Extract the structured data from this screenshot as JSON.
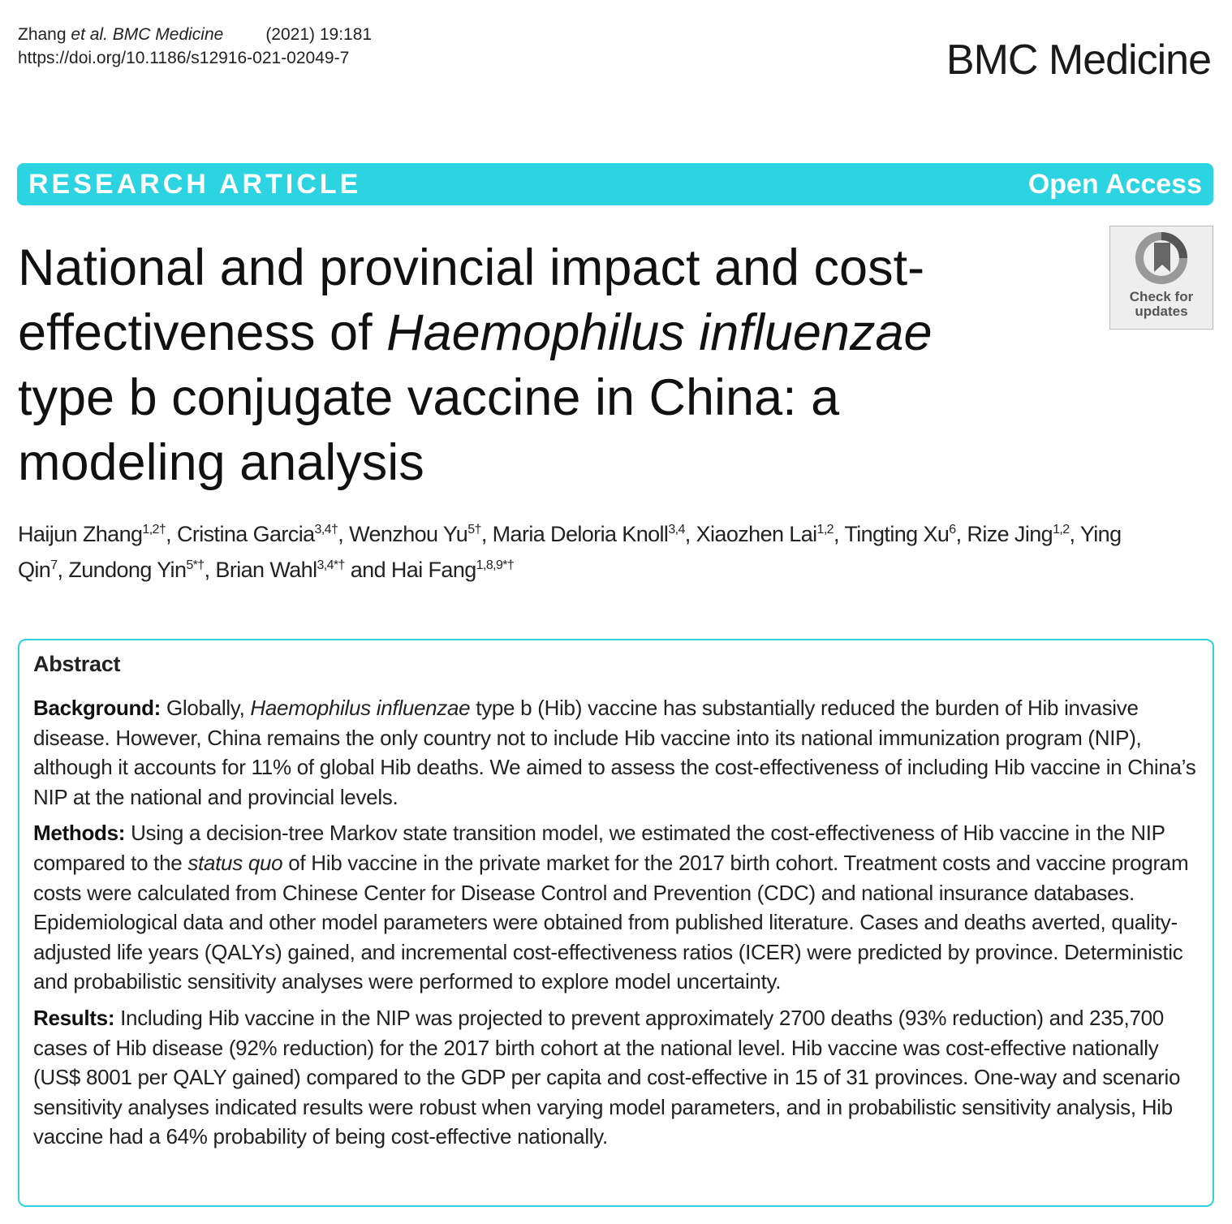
{
  "header": {
    "citation_author": "Zhang",
    "citation_etal": "et al.",
    "citation_journal": "BMC Medicine",
    "citation_year": "(2021) 19:181",
    "doi": "https://doi.org/10.1186/s12916-021-02049-7",
    "journal_name": "BMC Medicine"
  },
  "banner": {
    "type": "RESEARCH ARTICLE",
    "access": "Open Access",
    "color": "#2bd4e0"
  },
  "badge": {
    "line1": "Check for",
    "line2": "updates"
  },
  "title": {
    "part1": "National and provincial impact and cost-effectiveness of ",
    "italic": "Haemophilus influenzae",
    "part2": " type b conjugate vaccine in China: a modeling analysis"
  },
  "authors": [
    {
      "name": "Haijun Zhang",
      "affil": "1,2†",
      "sep": ", "
    },
    {
      "name": "Cristina Garcia",
      "affil": "3,4†",
      "sep": ", "
    },
    {
      "name": "Wenzhou Yu",
      "affil": "5†",
      "sep": ", "
    },
    {
      "name": "Maria Deloria Knoll",
      "affil": "3,4",
      "sep": ", "
    },
    {
      "name": "Xiaozhen Lai",
      "affil": "1,2",
      "sep": ", "
    },
    {
      "name": "Tingting Xu",
      "affil": "6",
      "sep": ", "
    },
    {
      "name": "Rize Jing",
      "affil": "1,2",
      "sep": ", "
    },
    {
      "name": "Ying Qin",
      "affil": "7",
      "sep": ", "
    },
    {
      "name": "Zundong Yin",
      "affil": "5*†",
      "sep": ", "
    },
    {
      "name": "Brian Wahl",
      "affil": "3,4*†",
      "sep": " and "
    },
    {
      "name": "Hai Fang",
      "affil": "1,8,9*†",
      "sep": ""
    }
  ],
  "abstract": {
    "heading": "Abstract",
    "background": {
      "label": "Background:",
      "t1": " Globally, ",
      "italic": "Haemophilus influenzae",
      "t2": " type b (Hib) vaccine has substantially reduced the burden of Hib invasive disease. However, China remains the only country not to include Hib vaccine into its national immunization program (NIP), although it accounts for 11% of global Hib deaths. We aimed to assess the cost-effectiveness of including Hib vaccine in China’s NIP at the national and provincial levels."
    },
    "methods": {
      "label": "Methods:",
      "t1": " Using a decision-tree Markov state transition model, we estimated the cost-effectiveness of Hib vaccine in the NIP compared to the ",
      "italic": "status quo",
      "t2": " of Hib vaccine in the private market for the 2017 birth cohort. Treatment costs and vaccine program costs were calculated from Chinese Center for Disease Control and Prevention (CDC) and national insurance databases. Epidemiological data and other model parameters were obtained from published literature. Cases and deaths averted, quality-adjusted life years (QALYs) gained, and incremental cost-effectiveness ratios (ICER) were predicted by province. Deterministic and probabilistic sensitivity analyses were performed to explore model uncertainty."
    },
    "results": {
      "label": "Results:",
      "t1": " Including Hib vaccine in the NIP was projected to prevent approximately 2700 deaths (93% reduction) and 235,700 cases of Hib disease (92% reduction) for the 2017 birth cohort at the national level. Hib vaccine was cost-effective nationally (US$ 8001 per QALY gained) compared to the GDP per capita and cost-effective in 15 of 31 provinces. One-way and scenario sensitivity analyses indicated results were robust when varying model parameters, and in probabilistic sensitivity analysis, Hib vaccine had a 64% probability of being cost-effective nationally."
    }
  }
}
